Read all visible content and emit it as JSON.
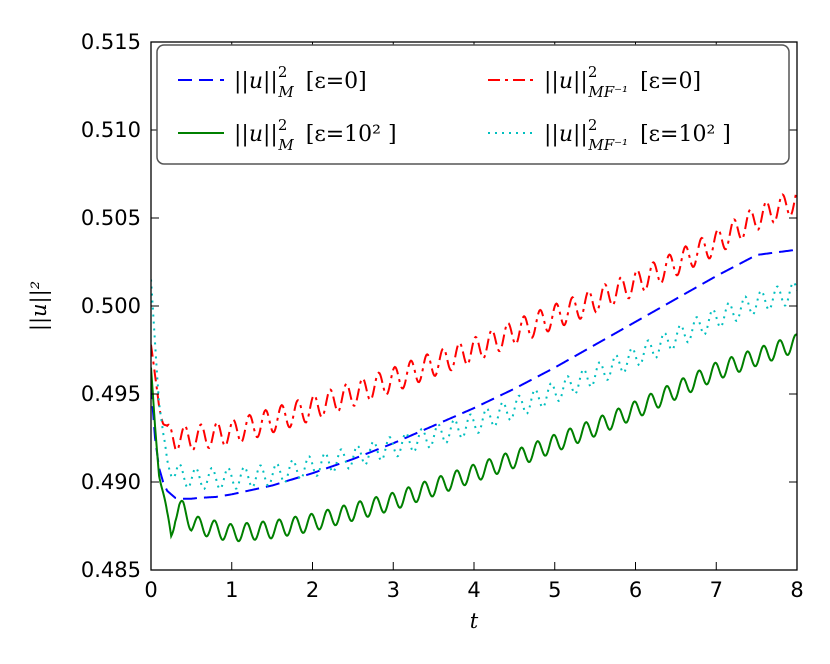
{
  "chart_data": {
    "type": "line",
    "xlabel": "t",
    "ylabel": "||u||²",
    "xlim": [
      0,
      8
    ],
    "ylim": [
      0.485,
      0.515
    ],
    "x_ticks": [
      0,
      1,
      2,
      3,
      4,
      5,
      6,
      7,
      8
    ],
    "y_ticks": [
      0.485,
      0.49,
      0.495,
      0.5,
      0.505,
      0.51,
      0.515
    ],
    "x_tick_labels": [
      "0",
      "1",
      "2",
      "3",
      "4",
      "5",
      "6",
      "7",
      "8"
    ],
    "y_tick_labels": [
      "0.485",
      "0.490",
      "0.495",
      "0.500",
      "0.505",
      "0.510",
      "0.515"
    ],
    "grid": false,
    "legend_position": "top",
    "series": [
      {
        "name": "||u||²_M [ε=0]",
        "color": "#0000ff",
        "style": "dashed",
        "x": [
          0,
          0.05,
          0.1,
          0.15,
          0.2,
          0.3,
          0.4,
          0.5,
          0.6,
          0.8,
          1.0,
          1.5,
          2.0,
          2.5,
          3.0,
          3.5,
          4.0,
          4.5,
          5.0,
          5.5,
          6.0,
          6.5,
          7.0,
          7.5,
          8.0
        ],
        "values": [
          0.4955,
          0.4925,
          0.4908,
          0.49,
          0.4895,
          0.4891,
          0.48905,
          0.48905,
          0.4891,
          0.48915,
          0.4893,
          0.4898,
          0.4905,
          0.4913,
          0.4922,
          0.4932,
          0.4942,
          0.4953,
          0.4965,
          0.4978,
          0.4991,
          0.5004,
          0.5017,
          0.5029,
          0.5032
        ]
      },
      {
        "name": "||u||²_MF⁻¹ [ε=0]",
        "color": "#ff0000",
        "style": "dashdot",
        "x": [
          0,
          0.05,
          0.1,
          0.15,
          0.2,
          0.3,
          0.5,
          1.0,
          1.5,
          2.0,
          2.5,
          3.0,
          3.5,
          4.0,
          4.5,
          5.0,
          5.5,
          6.0,
          6.5,
          7.0,
          7.5,
          8.0
        ],
        "values": [
          0.4978,
          0.496,
          0.4945,
          0.4935,
          0.4928,
          0.4925,
          0.4925,
          0.4928,
          0.4935,
          0.4942,
          0.495,
          0.4958,
          0.4967,
          0.4975,
          0.4985,
          0.4994,
          0.5003,
          0.5013,
          0.5024,
          0.5036,
          0.505,
          0.506
        ],
        "oscillation_amplitude": 0.0007
      },
      {
        "name": "||u||²_M [ε=10² ]",
        "color": "#008000",
        "style": "solid",
        "x": [
          0,
          0.05,
          0.1,
          0.15,
          0.2,
          0.25,
          0.3,
          0.35,
          0.4,
          0.5,
          0.6,
          1.0,
          1.5,
          2.0,
          2.5,
          3.0,
          3.5,
          4.0,
          4.5,
          5.0,
          5.5,
          6.0,
          6.5,
          7.0,
          7.5,
          8.0
        ],
        "values": [
          0.4965,
          0.4932,
          0.4905,
          0.4893,
          0.488,
          0.4871,
          0.4882,
          0.4885,
          0.4884,
          0.4877,
          0.4875,
          0.4871,
          0.4873,
          0.4877,
          0.4883,
          0.4889,
          0.4897,
          0.4905,
          0.4913,
          0.4922,
          0.4931,
          0.4941,
          0.4952,
          0.4963,
          0.4971,
          0.4979
        ],
        "oscillation_amplitude": 0.0005
      },
      {
        "name": "||u||²_MF⁻¹ [ε=10² ]",
        "color": "#00bfbf",
        "style": "dotted",
        "x": [
          0,
          0.05,
          0.1,
          0.15,
          0.2,
          0.3,
          0.5,
          1.0,
          1.5,
          2.0,
          2.5,
          3.0,
          3.5,
          4.0,
          4.5,
          5.0,
          5.5,
          6.0,
          6.5,
          7.0,
          7.5,
          8.0
        ],
        "values": [
          0.5015,
          0.498,
          0.4945,
          0.4925,
          0.4912,
          0.4905,
          0.4902,
          0.4902,
          0.4904,
          0.4909,
          0.4914,
          0.492,
          0.4926,
          0.4933,
          0.4942,
          0.4951,
          0.4961,
          0.4971,
          0.4982,
          0.4993,
          0.5002,
          0.5008
        ],
        "oscillation_amplitude": 0.0006
      }
    ]
  },
  "legend": {
    "items": [
      {
        "base": "||u||",
        "sup": "2",
        "sub": "M",
        "bracket": "[ε=0]",
        "color": "#0000ff",
        "style": "dashed"
      },
      {
        "base": "||u||",
        "sup": "2",
        "sub": "MF⁻¹",
        "bracket": "[ε=0]",
        "color": "#ff0000",
        "style": "dashdot"
      },
      {
        "base": "||u||",
        "sup": "2",
        "sub": "M",
        "bracket": "[ε=10² ]",
        "color": "#008000",
        "style": "solid"
      },
      {
        "base": "||u||",
        "sup": "2",
        "sub": "MF⁻¹",
        "bracket": "[ε=10² ]",
        "color": "#00bfbf",
        "style": "dotted"
      }
    ]
  }
}
